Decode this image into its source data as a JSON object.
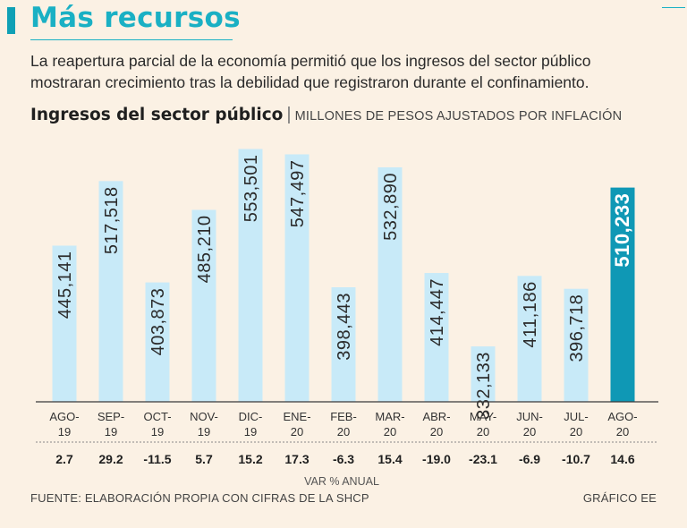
{
  "header": {
    "headline": "Más recursos",
    "subtitle": "La reapertura parcial de la economía permitió que los ingresos del sector público mostraran crecimiento tras la debilidad que registraron durante el confinamiento."
  },
  "colors": {
    "accent": "#1ab0c4",
    "bar": "#c8eaf8",
    "highlight_bar": "#0f98b5",
    "background": "#fbf1e4"
  },
  "chart_data": {
    "type": "bar",
    "title": "Ingresos del sector público",
    "unit": "MILLONES DE PESOS AJUSTADOS POR INFLACIÓN",
    "categories": [
      [
        "AGO-",
        "19"
      ],
      [
        "SEP-",
        "19"
      ],
      [
        "OCT-",
        "19"
      ],
      [
        "NOV-",
        "19"
      ],
      [
        "DIC-",
        "19"
      ],
      [
        "ENE-",
        "20"
      ],
      [
        "FEB-",
        "20"
      ],
      [
        "MAR-",
        "20"
      ],
      [
        "ABR-",
        "20"
      ],
      [
        "MAY-",
        "20"
      ],
      [
        "JUN-",
        "20"
      ],
      [
        "JUL-",
        "20"
      ],
      [
        "AGO-",
        "20"
      ]
    ],
    "values": [
      445141,
      517518,
      403873,
      485210,
      553501,
      547497,
      398443,
      532890,
      414447,
      332133,
      411186,
      396718,
      510233
    ],
    "value_labels": [
      "445,141",
      "517,518",
      "403,873",
      "485,210",
      "553,501",
      "547,497",
      "398,443",
      "532,890",
      "414,447",
      "332,133",
      "411,186",
      "396,718",
      "510,233"
    ],
    "yoy_change": [
      "2.7",
      "29.2",
      "-11.5",
      "5.7",
      "15.2",
      "17.3",
      "-6.3",
      "15.4",
      "-19.0",
      "-23.1",
      "-6.9",
      "-10.7",
      "14.6"
    ],
    "yoy_label": "VAR % ANUAL",
    "highlight_index": 12,
    "ylim": [
      270000,
      560000
    ]
  },
  "footer": {
    "source": "FUENTE: ELABORACIÓN PROPIA CON CIFRAS DE LA SHCP",
    "credit": "GRÁFICO EE"
  }
}
